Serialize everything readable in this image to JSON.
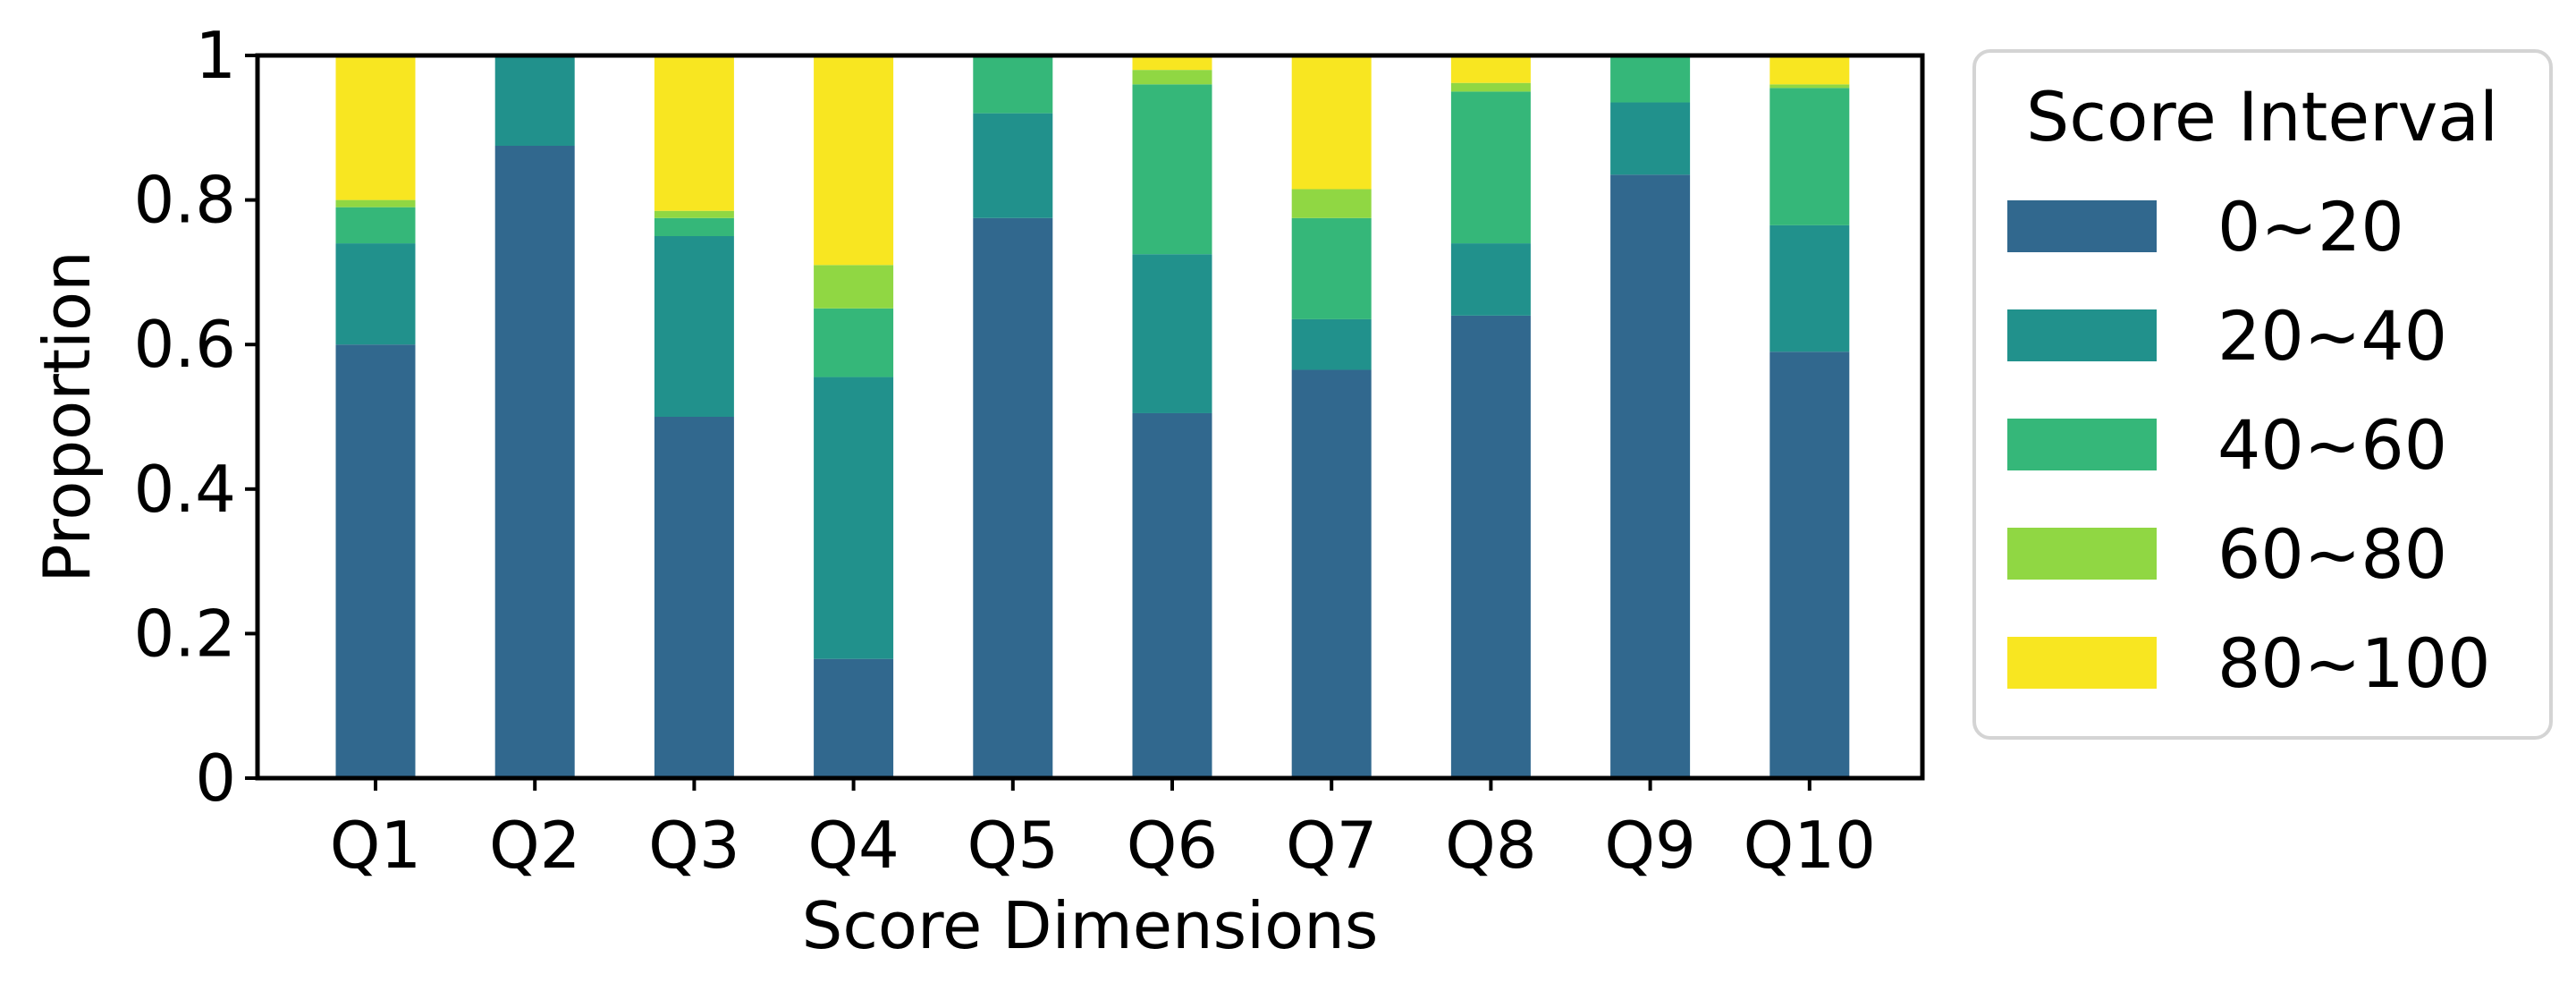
{
  "chart_data": {
    "type": "bar",
    "stacked": true,
    "xlabel": "Score Dimensions",
    "ylabel": "Proportion",
    "ylim": [
      0,
      1
    ],
    "yticks": [
      {
        "value": 0,
        "label": "0"
      },
      {
        "value": 0.2,
        "label": "0.2"
      },
      {
        "value": 0.4,
        "label": "0.4"
      },
      {
        "value": 0.6,
        "label": "0.6"
      },
      {
        "value": 0.8,
        "label": "0.8"
      },
      {
        "value": 1,
        "label": "1"
      }
    ],
    "categories": [
      "Q1",
      "Q2",
      "Q3",
      "Q4",
      "Q5",
      "Q6",
      "Q7",
      "Q8",
      "Q9",
      "Q10"
    ],
    "legend_title": "Score Interval",
    "legend_position": "outside-right",
    "series": [
      {
        "name": "0~20",
        "color": "#31688e",
        "values": [
          0.6,
          0.875,
          0.5,
          0.165,
          0.775,
          0.505,
          0.565,
          0.64,
          0.835,
          0.59
        ]
      },
      {
        "name": "20~40",
        "color": "#21918c",
        "values": [
          0.14,
          0.125,
          0.25,
          0.39,
          0.145,
          0.22,
          0.07,
          0.1,
          0.1,
          0.175
        ]
      },
      {
        "name": "40~60",
        "color": "#35b779",
        "values": [
          0.05,
          0.0,
          0.025,
          0.095,
          0.08,
          0.235,
          0.14,
          0.21,
          0.065,
          0.19
        ]
      },
      {
        "name": "60~80",
        "color": "#90d743",
        "values": [
          0.01,
          0.0,
          0.01,
          0.06,
          0.0,
          0.02,
          0.04,
          0.012,
          0.0,
          0.005
        ]
      },
      {
        "name": "80~100",
        "color": "#f8e621",
        "values": [
          0.2,
          0.0,
          0.215,
          0.29,
          0.0,
          0.02,
          0.185,
          0.038,
          0.0,
          0.04
        ]
      }
    ]
  }
}
